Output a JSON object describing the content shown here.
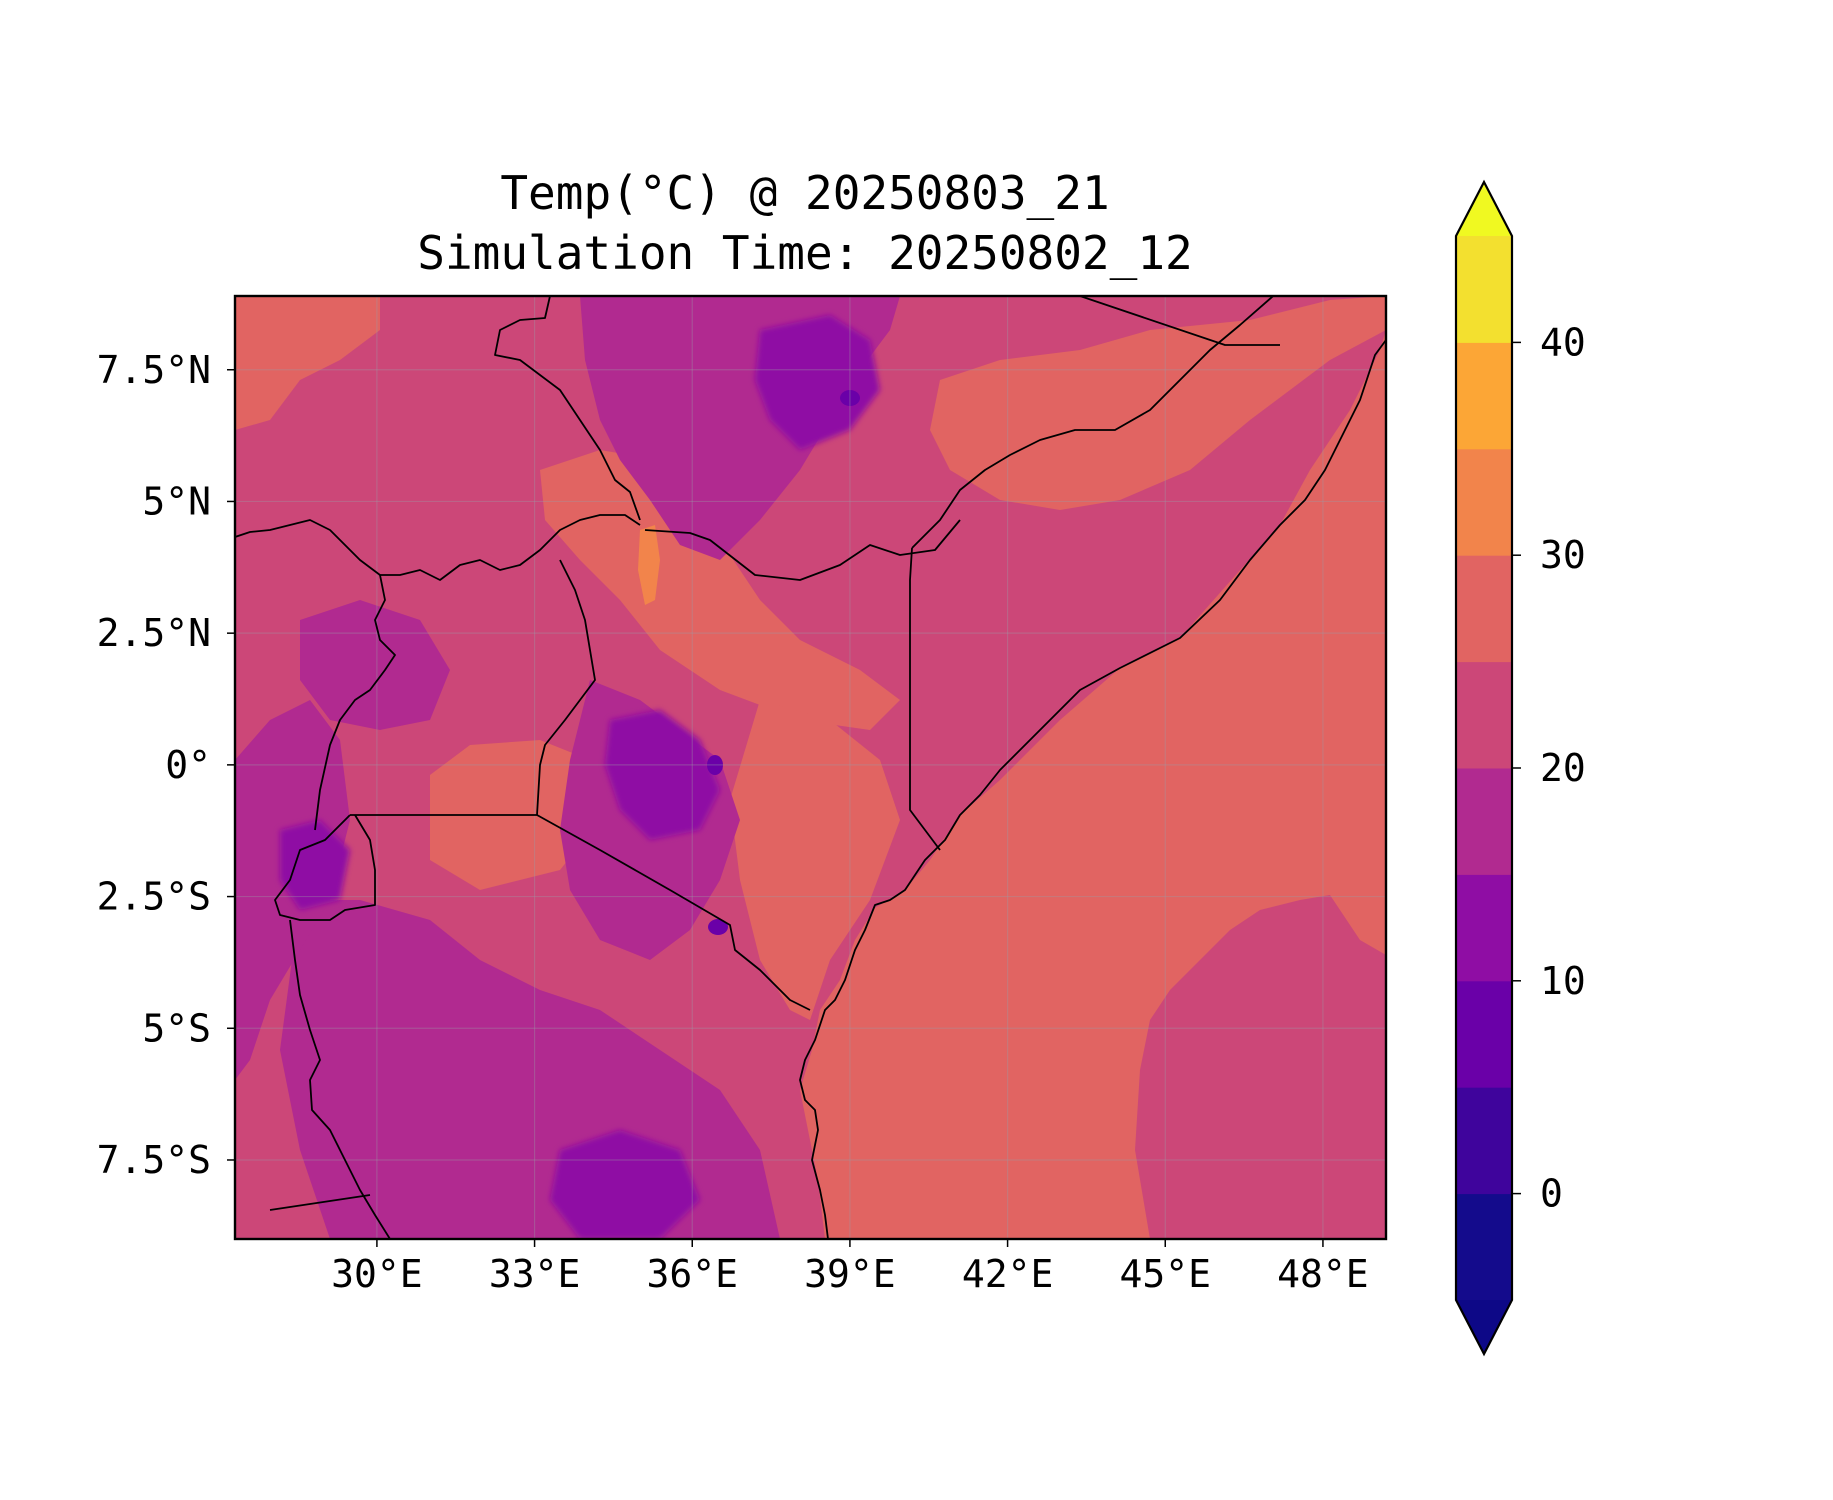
{
  "figure": {
    "title_line1": "Temp(°C) @ 20250803_21",
    "title_line2": "Simulation Time: 20250802_12"
  },
  "map": {
    "lon_range": [
      27.3,
      49.2
    ],
    "lat_range": [
      -9.0,
      8.9
    ],
    "x_ticks": [
      {
        "value": 30,
        "label": "30°E"
      },
      {
        "value": 33,
        "label": "33°E"
      },
      {
        "value": 36,
        "label": "36°E"
      },
      {
        "value": 39,
        "label": "39°E"
      },
      {
        "value": 42,
        "label": "42°E"
      },
      {
        "value": 45,
        "label": "45°E"
      },
      {
        "value": 48,
        "label": "48°E"
      }
    ],
    "y_ticks": [
      {
        "value": 7.5,
        "label": "7.5°N"
      },
      {
        "value": 5,
        "label": "5°N"
      },
      {
        "value": 2.5,
        "label": "2.5°N"
      },
      {
        "value": 0,
        "label": "0°"
      },
      {
        "value": -2.5,
        "label": "2.5°S"
      },
      {
        "value": -5,
        "label": "5°S"
      },
      {
        "value": -7.5,
        "label": "7.5°S"
      }
    ],
    "gridlines": true,
    "colormap": "plasma",
    "variable": "Temp(°C)",
    "features": [
      "country borders",
      "coastline"
    ]
  },
  "colorbar": {
    "min": -5,
    "max": 45,
    "step": 5,
    "extend": "both",
    "ticks": [
      {
        "value": 0,
        "label": "0"
      },
      {
        "value": 10,
        "label": "10"
      },
      {
        "value": 20,
        "label": "20"
      },
      {
        "value": 30,
        "label": "30"
      },
      {
        "value": 40,
        "label": "40"
      }
    ],
    "colors": [
      "#140b8c",
      "#3f049c",
      "#6a00a8",
      "#8f0da4",
      "#b12a90",
      "#cc4778",
      "#e16462",
      "#f2844b",
      "#fca636",
      "#f3e02f"
    ],
    "under_color": "#0d0887",
    "over_color": "#f0f921"
  }
}
